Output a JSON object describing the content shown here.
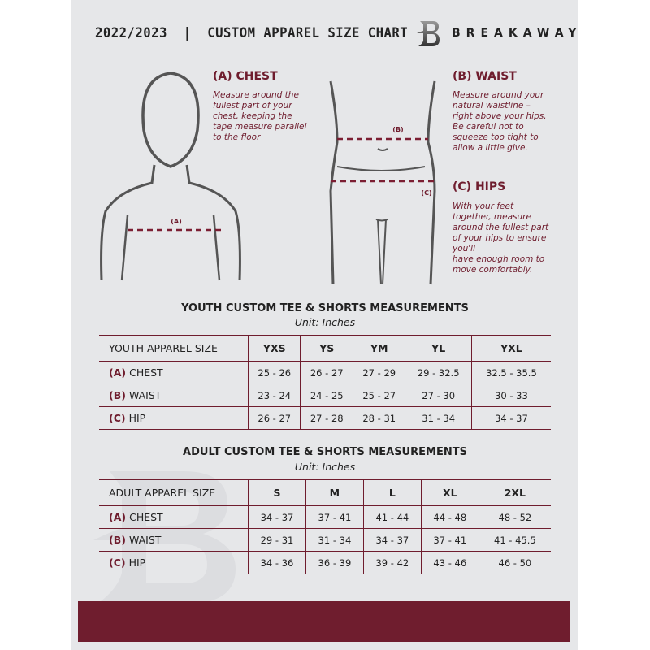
{
  "header": {
    "title": "2022/2023  |  CUSTOM APPAREL SIZE CHART",
    "brand": "BREAKAWAY",
    "logo_letter": "B"
  },
  "guide": {
    "chest": {
      "heading": "(A) CHEST",
      "text": [
        "Measure around the",
        "fullest part of your",
        "chest, keeping the",
        "tape measure parallel",
        "to the floor"
      ],
      "marker": "(A)"
    },
    "waist": {
      "heading": "(B) WAIST",
      "text": [
        "Measure around your",
        "natural waistline –",
        "right above your hips.",
        "Be careful not to",
        "squeeze too tight to",
        "allow a little give."
      ],
      "marker": "(B)"
    },
    "hips": {
      "heading": "(C) HIPS",
      "text": [
        "With your feet",
        "together, measure",
        "around the fullest part",
        "of your hips to ensure",
        "you'll",
        "have enough room to",
        "move comfortably."
      ],
      "marker": "(C)"
    }
  },
  "youth": {
    "title": "YOUTH CUSTOM TEE & SHORTS MEASUREMENTS",
    "unit": "Unit: Inches",
    "size_label": "YOUTH APPAREL SIZE",
    "sizes": [
      "YXS",
      "YS",
      "YM",
      "YL",
      "YXL"
    ],
    "rows": [
      {
        "letter": "(A)",
        "name": "CHEST",
        "values": [
          "25 - 26",
          "26 - 27",
          "27 - 29",
          "29 - 32.5",
          "32.5 - 35.5"
        ]
      },
      {
        "letter": "(B)",
        "name": "WAIST",
        "values": [
          "23 - 24",
          "24 - 25",
          "25 - 27",
          "27 - 30",
          "30 - 33"
        ]
      },
      {
        "letter": "(C)",
        "name": "HIP",
        "values": [
          "26 - 27",
          "27 - 28",
          "28 - 31",
          "31 - 34",
          "34 - 37"
        ]
      }
    ]
  },
  "adult": {
    "title": "ADULT CUSTOM TEE & SHORTS MEASUREMENTS",
    "unit": "Unit: Inches",
    "size_label": "ADULT APPAREL SIZE",
    "sizes": [
      "S",
      "M",
      "L",
      "XL",
      "2XL"
    ],
    "rows": [
      {
        "letter": "(A)",
        "name": "CHEST",
        "values": [
          "34 - 37",
          "37 - 41",
          "41 - 44",
          "44 - 48",
          "48 - 52"
        ]
      },
      {
        "letter": "(B)",
        "name": "WAIST",
        "values": [
          "29 - 31",
          "31 - 34",
          "34 - 37",
          "37 - 41",
          "41 - 45.5"
        ]
      },
      {
        "letter": "(C)",
        "name": "HIP",
        "values": [
          "34 - 36",
          "36 - 39",
          "39 - 42",
          "43 - 46",
          "46 - 50"
        ]
      }
    ]
  },
  "colors": {
    "accent": "#6f1d2e",
    "background": "#e6e7e9"
  }
}
